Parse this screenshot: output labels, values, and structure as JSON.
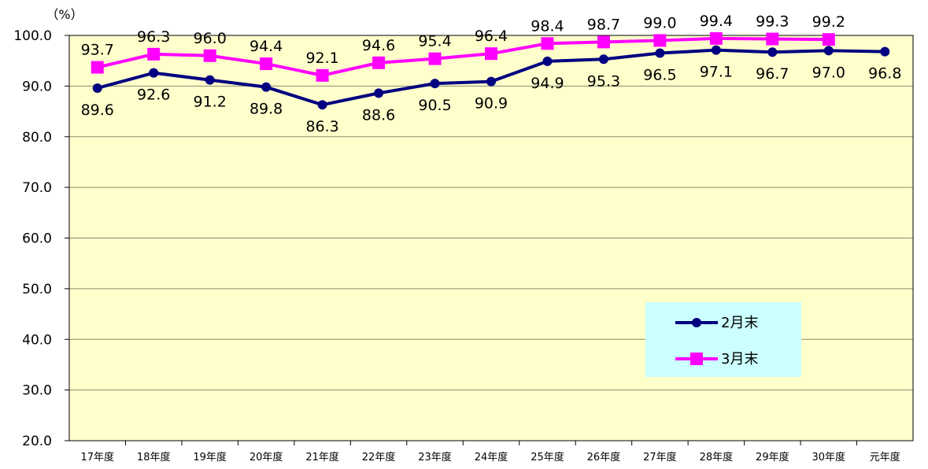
{
  "chart_data": {
    "type": "line",
    "unit_label": "（%）",
    "categories": [
      "17年度",
      "18年度",
      "19年度",
      "20年度",
      "21年度",
      "22年度",
      "23年度",
      "24年度",
      "25年度",
      "26年度",
      "27年度",
      "28年度",
      "29年度",
      "30年度",
      "元年度"
    ],
    "ylim": [
      20,
      100
    ],
    "yticks": [
      "20.0",
      "30.0",
      "40.0",
      "50.0",
      "60.0",
      "70.0",
      "80.0",
      "90.0",
      "100.0"
    ],
    "grid": true,
    "legend_position": "bottom-right",
    "background_color": "#FFFFCC",
    "legend_background": "#CCFFFF",
    "series": [
      {
        "name": "2月末",
        "color": "#000080",
        "marker": "circle",
        "values": [
          89.6,
          92.6,
          91.2,
          89.8,
          86.3,
          88.6,
          90.5,
          90.9,
          94.9,
          95.3,
          96.5,
          97.1,
          96.7,
          97.0,
          96.8
        ],
        "labels": [
          "89.6",
          "92.6",
          "91.2",
          "89.8",
          "86.3",
          "88.6",
          "90.5",
          "90.9",
          "94.9",
          "95.3",
          "96.5",
          "97.1",
          "96.7",
          "97.0",
          "96.8"
        ]
      },
      {
        "name": "3月末",
        "color": "#FF00FF",
        "marker": "square",
        "values": [
          93.7,
          96.3,
          96.0,
          94.4,
          92.1,
          94.6,
          95.4,
          96.4,
          98.4,
          98.7,
          99.0,
          99.4,
          99.3,
          99.2,
          null
        ],
        "labels": [
          "93.7",
          "96.3",
          "96.0",
          "94.4",
          "92.1",
          "94.6",
          "95.4",
          "96.4",
          "98.4",
          "98.7",
          "99.0",
          "99.4",
          "99.3",
          "99.2",
          ""
        ]
      }
    ]
  }
}
